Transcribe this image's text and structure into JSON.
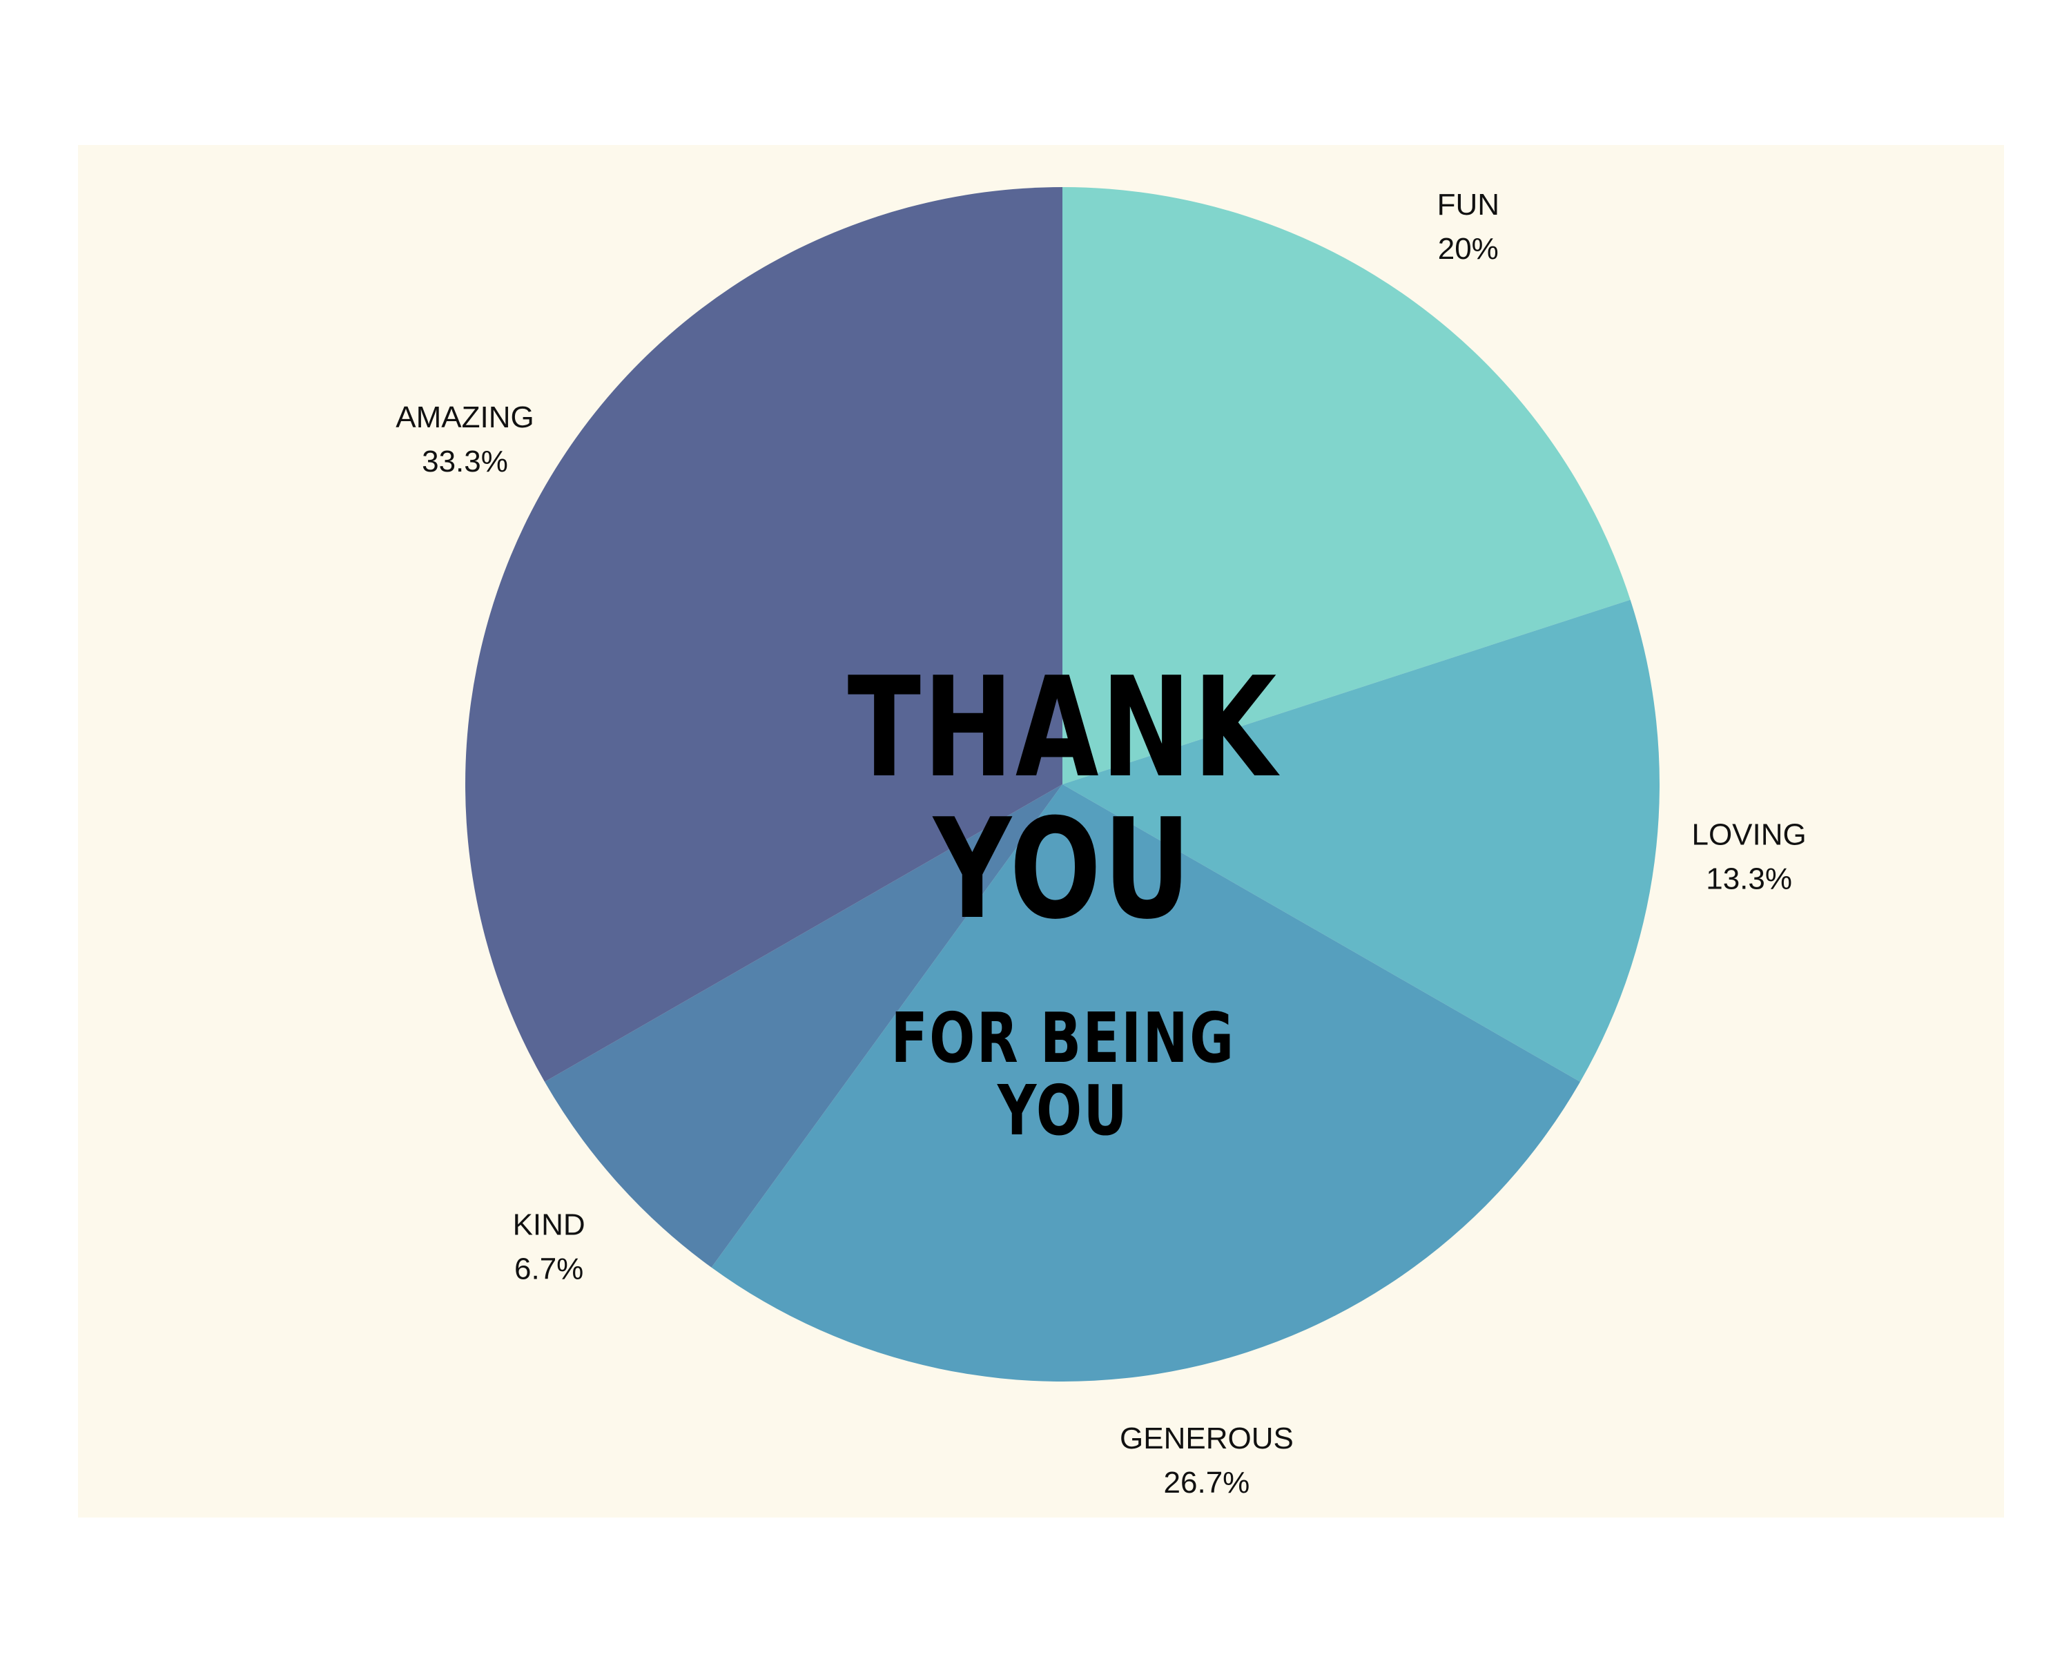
{
  "headline": {
    "line1": "THANK",
    "line2": "YOU",
    "sub_line1": "FOR BEING",
    "sub_line2": "YOU"
  },
  "colors": {
    "background": "#fdf9ec",
    "text": "#000000"
  },
  "chart_data": {
    "type": "pie",
    "title": "",
    "start_angle_deg": 0,
    "direction": "clockwise",
    "legend": "none",
    "slices": [
      {
        "label": "FUN",
        "value": 20,
        "value_label": "20%",
        "color": "#81d5cc"
      },
      {
        "label": "LOVING",
        "value": 13.3,
        "value_label": "13.3%",
        "color": "#64b8c7"
      },
      {
        "label": "GENEROUS",
        "value": 26.7,
        "value_label": "26.7%",
        "color": "#569fbe"
      },
      {
        "label": "KIND",
        "value": 6.7,
        "value_label": "6.7%",
        "color": "#5482ab"
      },
      {
        "label": "AMAZING",
        "value": 33.3,
        "value_label": "33.3%",
        "color": "#596695"
      }
    ]
  }
}
